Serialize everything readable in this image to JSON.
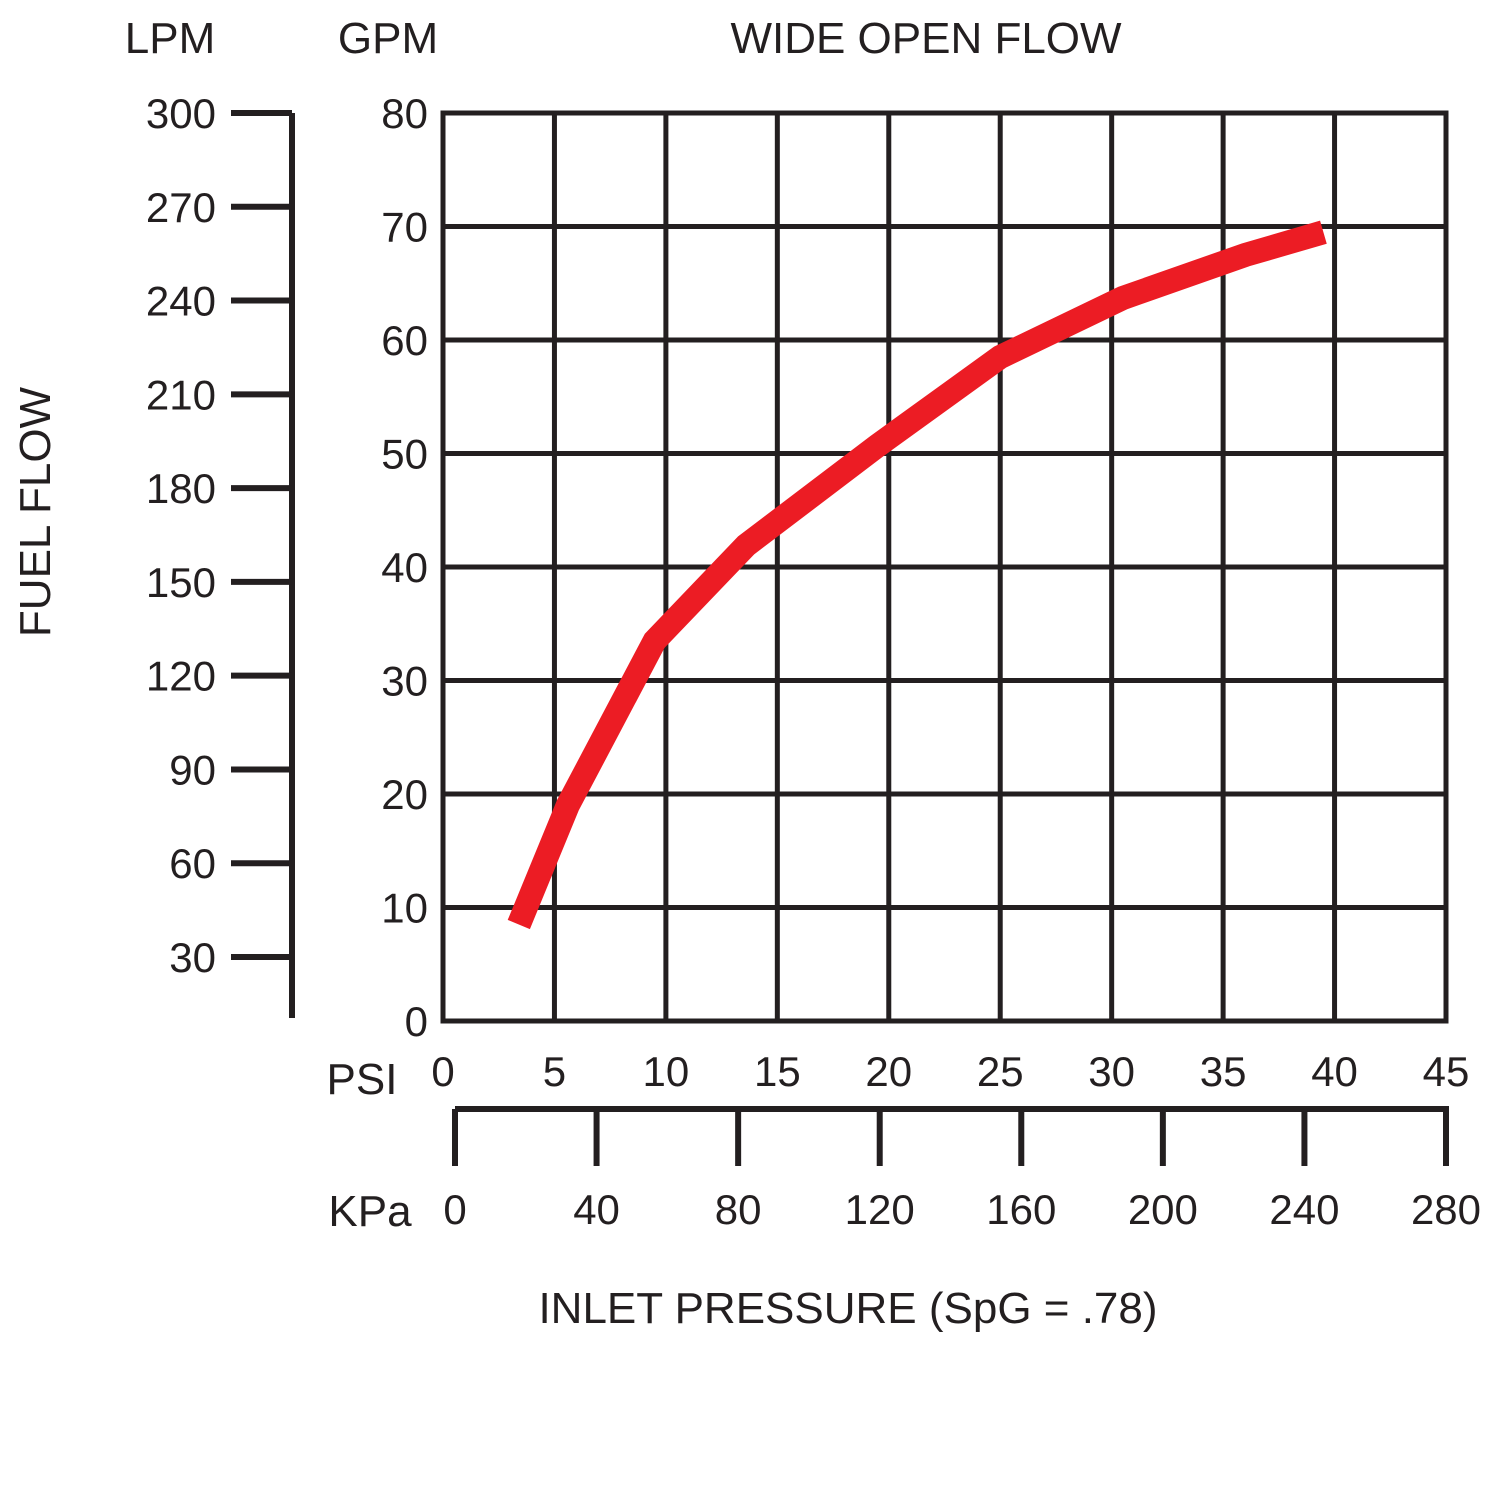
{
  "chart_data": {
    "type": "line",
    "title": "WIDE OPEN FLOW",
    "ylabel": "FUEL FLOW",
    "xlabel": "INLET PRESSURE (SpG = .78)",
    "y_units": {
      "primary": "GPM",
      "secondary": "LPM"
    },
    "x_units": {
      "primary": "PSI",
      "secondary": "KPa"
    },
    "ylim": [
      0,
      80
    ],
    "xlim": [
      0,
      45
    ],
    "gpm_ticks": [
      "80",
      "70",
      "60",
      "50",
      "40",
      "30",
      "20",
      "10",
      "0"
    ],
    "lpm_ticks": [
      "300",
      "270",
      "240",
      "210",
      "180",
      "150",
      "120",
      "90",
      "60",
      "30"
    ],
    "psi_ticks": [
      "0",
      "5",
      "10",
      "15",
      "20",
      "25",
      "30",
      "35",
      "40",
      "45"
    ],
    "kpa_ticks": [
      "0",
      "40",
      "80",
      "120",
      "160",
      "200",
      "240",
      "280"
    ],
    "grid": true,
    "line_color": "#ec1c24",
    "axis_color": "#231f20",
    "series": [
      {
        "x": [
          3.4,
          5.6,
          9.5,
          13.6,
          19.5,
          25.0,
          30.5,
          36.0,
          39.5
        ],
        "y": [
          8.5,
          19.0,
          33.5,
          41.9,
          50.7,
          58.5,
          63.7,
          67.5,
          69.5
        ]
      }
    ]
  }
}
